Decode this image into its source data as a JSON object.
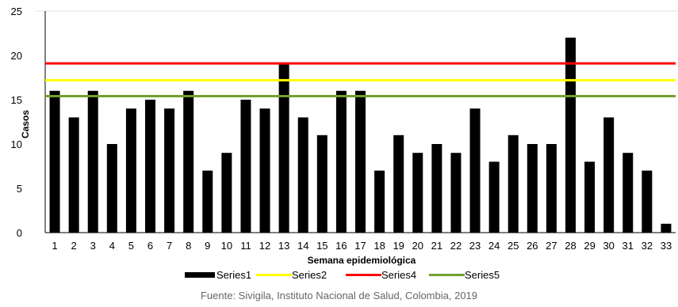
{
  "chart_data": {
    "type": "bar",
    "title": "",
    "xlabel": "Semana epidemiológica",
    "ylabel": "Casos",
    "ylim": [
      0,
      25
    ],
    "yticks": [
      0,
      5,
      10,
      15,
      20,
      25
    ],
    "categories": [
      "1",
      "2",
      "3",
      "4",
      "5",
      "6",
      "7",
      "8",
      "9",
      "10",
      "11",
      "12",
      "13",
      "14",
      "15",
      "16",
      "17",
      "18",
      "19",
      "20",
      "21",
      "22",
      "23",
      "24",
      "25",
      "26",
      "27",
      "28",
      "29",
      "30",
      "31",
      "32",
      "33"
    ],
    "series": [
      {
        "name": "Series1",
        "kind": "bar",
        "color": "#000000",
        "values": [
          16,
          13,
          16,
          10,
          14,
          15,
          14,
          16,
          7,
          9,
          15,
          14,
          19,
          13,
          11,
          16,
          16,
          7,
          11,
          9,
          10,
          9,
          14,
          8,
          11,
          10,
          10,
          22,
          8,
          13,
          9,
          7,
          1
        ]
      },
      {
        "name": "Series2",
        "kind": "line",
        "color": "#FFFF00",
        "value": 17.2
      },
      {
        "name": "Series4",
        "kind": "line",
        "color": "#FF0000",
        "value": 19.1
      },
      {
        "name": "Series5",
        "kind": "line",
        "color": "#70A030",
        "value": 15.4
      }
    ],
    "grid": false,
    "legend_position": "bottom"
  },
  "source_note": "Fuente: Sivigila, Instituto Nacional de Salud, Colombia, 2019"
}
